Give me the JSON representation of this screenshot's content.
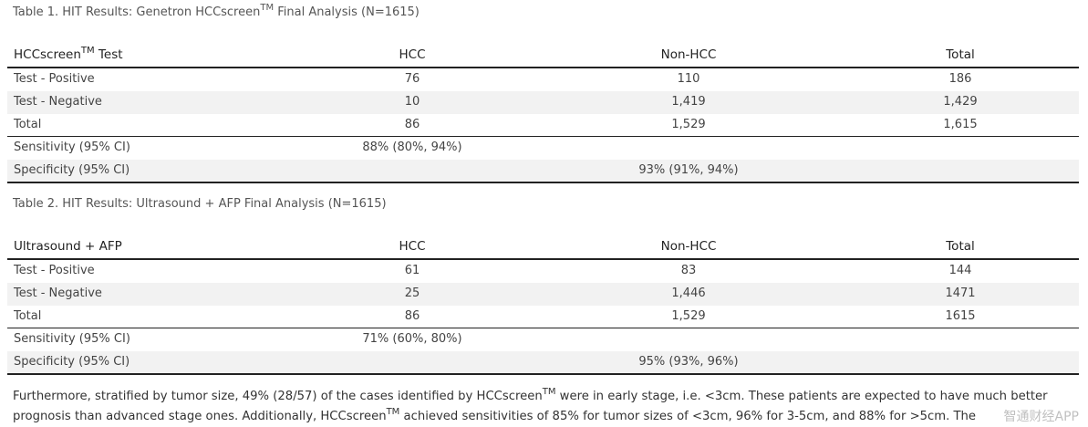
{
  "tables": [
    {
      "caption": {
        "text": "Table 1. HIT Results: Genetron HCCscreen",
        "sup": "TM",
        "after": " Final Analysis (N=1615)"
      },
      "header": [
        {
          "text": "HCCscreen",
          "sup": "TM",
          "after": " Test"
        },
        "HCC",
        "Non-HCC",
        "Total"
      ],
      "rows": [
        [
          "Test - Positive",
          "76",
          "110",
          "186"
        ],
        [
          "Test - Negative",
          "10",
          "1,419",
          "1,429"
        ],
        [
          "Total",
          "86",
          "1,529",
          "1,615"
        ]
      ],
      "stats": [
        [
          "Sensitivity (95% CI)",
          "88% (80%, 94%)"
        ],
        [
          "Specificity (95% CI)",
          "93% (91%, 94%)"
        ]
      ]
    },
    {
      "caption": {
        "text": "Table 2. HIT Results: Ultrasound + AFP Final Analysis (N=1615)"
      },
      "header": [
        {
          "text": "Ultrasound + AFP"
        },
        "HCC",
        "Non-HCC",
        "Total"
      ],
      "rows": [
        [
          "Test - Positive",
          "61",
          "83",
          "144"
        ],
        [
          "Test - Negative",
          "25",
          "1,446",
          "1471"
        ],
        [
          "Total",
          "86",
          "1,529",
          "1615"
        ]
      ],
      "stats": [
        [
          "Sensitivity (95% CI)",
          "71% (60%, 80%)"
        ],
        [
          "Specificity (95% CI)",
          "95% (93%, 96%)"
        ]
      ]
    }
  ],
  "paragraph": [
    "Furthermore, stratified by tumor size, 49% (28/57) of the cases identified by HCCscreen",
    "TM",
    " were in early stage, i.e. <3cm. These patients are expected to have much better prognosis than advanced stage ones. Additionally, HCCscreen",
    "TM",
    " achieved sensitivities of 85% for tumor sizes of <3cm, 96% for 3-5cm, and 88% for >5cm. The"
  ],
  "watermark": "智通财经APP"
}
